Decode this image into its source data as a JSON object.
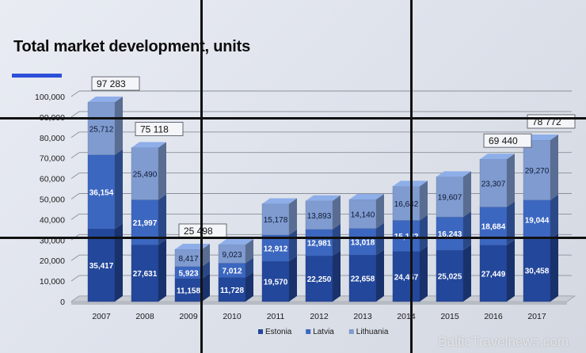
{
  "title": "Total market development, units",
  "watermark": "BalticTravelnews.com",
  "colors": {
    "estonia": "#23479a",
    "latvia": "#3c67c0",
    "lithuania": "#7f9bd0",
    "accent": "#2d4fd8"
  },
  "chart_data": {
    "type": "bar",
    "stacked": true,
    "categories": [
      "2007",
      "2008",
      "2009",
      "2010",
      "2011",
      "2012",
      "2013",
      "2014",
      "2015",
      "2016",
      "2017"
    ],
    "series": [
      {
        "name": "Estonia",
        "values": [
          35417,
          27631,
          11158,
          11728,
          19570,
          22250,
          22658,
          24457,
          25025,
          27449,
          30458
        ],
        "labels": [
          "35,417",
          "27,631",
          "11,158",
          "11,728",
          "19,570",
          "22,250",
          "22,658",
          "24,457",
          "25,025",
          "27,449",
          "30,458"
        ]
      },
      {
        "name": "Latvia",
        "values": [
          36154,
          21997,
          5923,
          7012,
          12912,
          12981,
          13018,
          15142,
          16243,
          18684,
          19044
        ],
        "labels": [
          "36,154",
          "21,997",
          "5,923",
          "7,012",
          "12,912",
          "12,981",
          "13,018",
          "15,142",
          "16,243",
          "18,684",
          "19,044"
        ]
      },
      {
        "name": "Lithuania",
        "values": [
          25712,
          25490,
          8417,
          9023,
          15178,
          13893,
          14140,
          16642,
          19607,
          23307,
          29270
        ],
        "labels": [
          "25,712",
          "25,490",
          "8,417",
          "9,023",
          "15,178",
          "13,893",
          "14,140",
          "16,642",
          "19,607",
          "23,307",
          "29,270"
        ]
      }
    ],
    "totals": [
      {
        "category": "2007",
        "label": "97 283"
      },
      {
        "category": "2008",
        "label": "75 118"
      },
      {
        "category": "2009",
        "label": "25 498"
      },
      {
        "category": "2016",
        "label": "69 440"
      },
      {
        "category": "2017",
        "label": "78 772"
      }
    ],
    "yticks": [
      "0",
      "10,000",
      "20,000",
      "30,000",
      "40,000",
      "50,000",
      "60,000",
      "70,000",
      "80,000",
      "90,000",
      "100,000"
    ],
    "ylim": [
      0,
      100000
    ],
    "grid": true,
    "legend_position": "bottom"
  }
}
